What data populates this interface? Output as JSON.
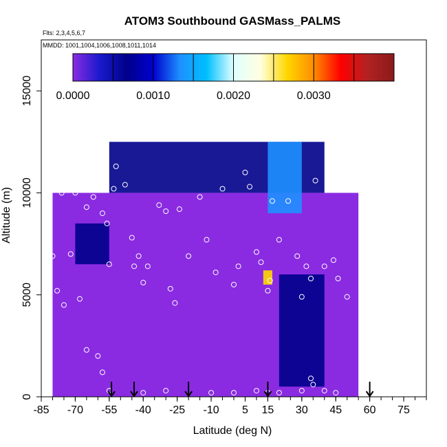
{
  "chart_data": {
    "type": "heatmap",
    "title": "ATOM3 Southbound GASMass_PALMS",
    "subtitle_flights": "Flts: 2,3,4,5,6,7",
    "subtitle_dates": "MMDD: 1001,1004,1006,1008,1011,1014",
    "xlabel": "Latitude (deg N)",
    "ylabel": "Altitude (m)",
    "xlim": [
      -85,
      85
    ],
    "ylim": [
      0,
      17500
    ],
    "x_ticks": [
      -85,
      -70,
      -55,
      -40,
      -25,
      -10,
      5,
      15,
      30,
      45,
      60,
      75
    ],
    "y_ticks": [
      0,
      5000,
      10000,
      15000
    ],
    "colorbar": {
      "min": 0,
      "max": 0.004,
      "ticks": [
        "0.0000",
        "0.0010",
        "0.0020",
        "0.0030"
      ],
      "tick_values": [
        0,
        0.001,
        0.002,
        0.003
      ],
      "colors": [
        "#8a2be2",
        "#1a1acc",
        "#00008b",
        "#0000cd",
        "#1e90ff",
        "#00bfff",
        "#e0ffff",
        "#ffffe0",
        "#ffd700",
        "#ff8c00",
        "#ff0000",
        "#b22222",
        "#8b1a1a"
      ]
    },
    "arrows_latitude": [
      -54,
      -44,
      -20,
      15,
      60
    ],
    "fill_regions": [
      {
        "lat": [
          -80,
          55
        ],
        "alt": [
          0,
          10000
        ],
        "level": 0.0
      },
      {
        "lat": [
          -55,
          40
        ],
        "alt": [
          10000,
          12500
        ],
        "level": 0.0008
      },
      {
        "lat": [
          15,
          30
        ],
        "alt": [
          9000,
          12500
        ],
        "level": 0.0014
      },
      {
        "lat": [
          20,
          40
        ],
        "alt": [
          500,
          6000
        ],
        "level": 0.0008
      },
      {
        "lat": [
          -70,
          -55
        ],
        "alt": [
          6500,
          8500
        ],
        "level": 0.0006
      },
      {
        "lat": [
          13,
          17
        ],
        "alt": [
          5500,
          6200
        ],
        "level": 0.0025
      }
    ],
    "points": [
      [
        -72,
        7000
      ],
      [
        -70,
        10000
      ],
      [
        -65,
        9300
      ],
      [
        -62,
        9800
      ],
      [
        -58,
        9000
      ],
      [
        -56,
        8500
      ],
      [
        -55,
        6500
      ],
      [
        -53,
        10200
      ],
      [
        -52,
        11300
      ],
      [
        -48,
        10400
      ],
      [
        -45,
        7800
      ],
      [
        -44,
        6400
      ],
      [
        -42,
        6900
      ],
      [
        -40,
        5600
      ],
      [
        -38,
        6400
      ],
      [
        -33,
        9400
      ],
      [
        -30,
        9100
      ],
      [
        -28,
        5300
      ],
      [
        -26,
        4600
      ],
      [
        -24,
        9200
      ],
      [
        -20,
        6900
      ],
      [
        -15,
        9800
      ],
      [
        -12,
        7700
      ],
      [
        -8,
        6100
      ],
      [
        -5,
        10200
      ],
      [
        0,
        5500
      ],
      [
        2,
        6400
      ],
      [
        5,
        11000
      ],
      [
        7,
        10300
      ],
      [
        10,
        7100
      ],
      [
        12,
        6600
      ],
      [
        15,
        5200
      ],
      [
        16,
        5700
      ],
      [
        17,
        9600
      ],
      [
        20,
        7700
      ],
      [
        24,
        9600
      ],
      [
        28,
        6900
      ],
      [
        30,
        4900
      ],
      [
        32,
        6400
      ],
      [
        34,
        5800
      ],
      [
        36,
        10600
      ],
      [
        40,
        6400
      ],
      [
        42,
        10500
      ],
      [
        44,
        6700
      ],
      [
        46,
        5800
      ],
      [
        50,
        4900
      ],
      [
        -80,
        6900
      ],
      [
        -76,
        10000
      ],
      [
        -78,
        5200
      ],
      [
        -75,
        4500
      ],
      [
        -68,
        4800
      ],
      [
        -65,
        2300
      ],
      [
        -60,
        2000
      ],
      [
        -58,
        1200
      ],
      [
        -55,
        300
      ],
      [
        -40,
        200
      ],
      [
        -30,
        300
      ],
      [
        -10,
        200
      ],
      [
        0,
        200
      ],
      [
        10,
        300
      ],
      [
        15,
        200
      ],
      [
        20,
        200
      ],
      [
        30,
        300
      ],
      [
        34,
        900
      ],
      [
        35,
        600
      ],
      [
        40,
        300
      ],
      [
        45,
        200
      ]
    ]
  }
}
